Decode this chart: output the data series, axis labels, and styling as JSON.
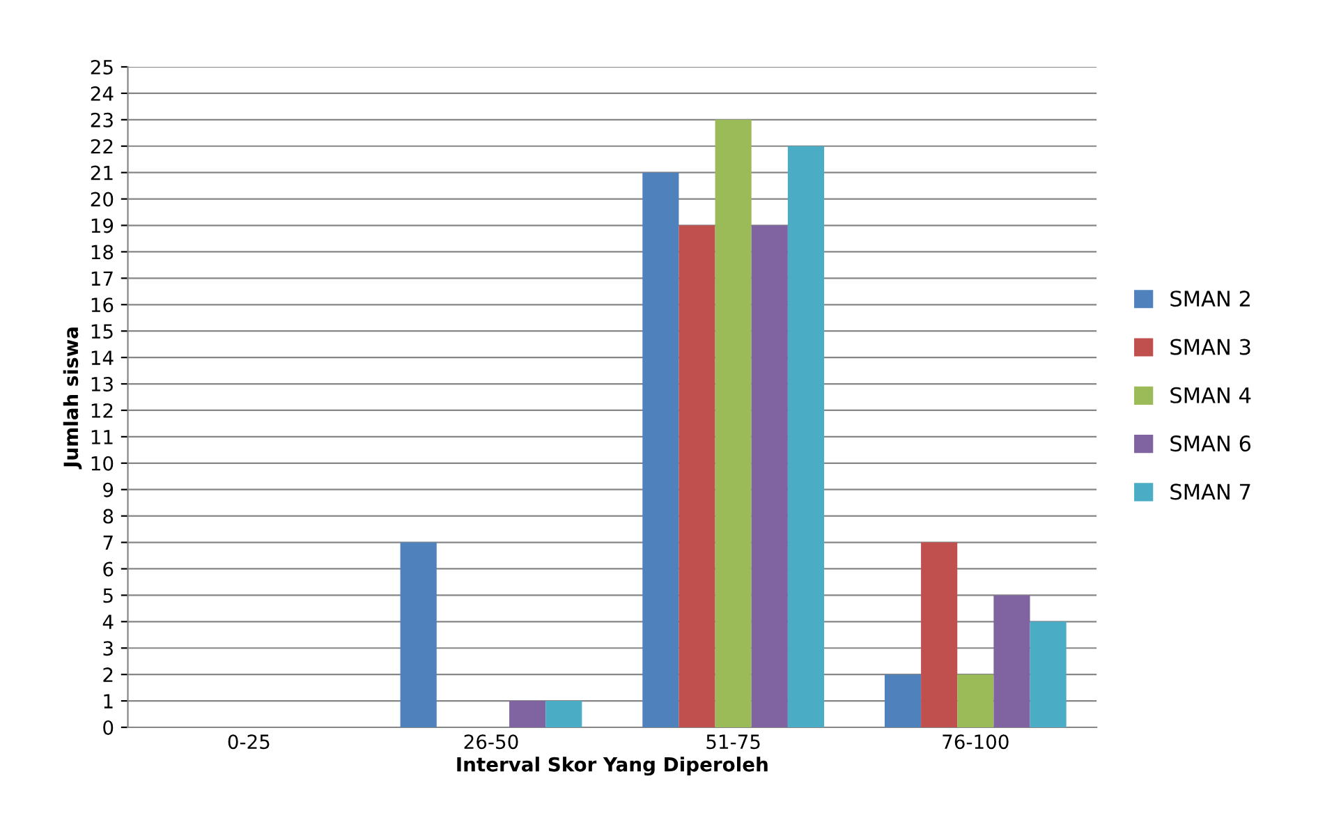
{
  "chart_data": {
    "type": "bar",
    "xlabel": "Interval Skor Yang Diperoleh",
    "ylabel": "Jumlah siswa",
    "categories": [
      "0-25",
      "26-50",
      "51-75",
      "76-100"
    ],
    "series": [
      {
        "name": "SMAN 2",
        "color": "#4f81bd",
        "values": [
          0,
          7,
          21,
          2
        ]
      },
      {
        "name": "SMAN 3",
        "color": "#c0504d",
        "values": [
          0,
          0,
          19,
          7
        ]
      },
      {
        "name": "SMAN 4",
        "color": "#9bbb59",
        "values": [
          0,
          0,
          23,
          2
        ]
      },
      {
        "name": "SMAN 6",
        "color": "#8064a2",
        "values": [
          0,
          1,
          19,
          5
        ]
      },
      {
        "name": "SMAN 7",
        "color": "#4bacc6",
        "values": [
          0,
          1,
          22,
          4
        ]
      }
    ],
    "ylim": [
      0,
      25
    ],
    "yticks": [
      0,
      1,
      2,
      3,
      4,
      5,
      6,
      7,
      8,
      9,
      10,
      11,
      12,
      13,
      14,
      15,
      16,
      17,
      18,
      19,
      20,
      21,
      22,
      23,
      24,
      25
    ],
    "grid": "y",
    "legend": "right"
  }
}
